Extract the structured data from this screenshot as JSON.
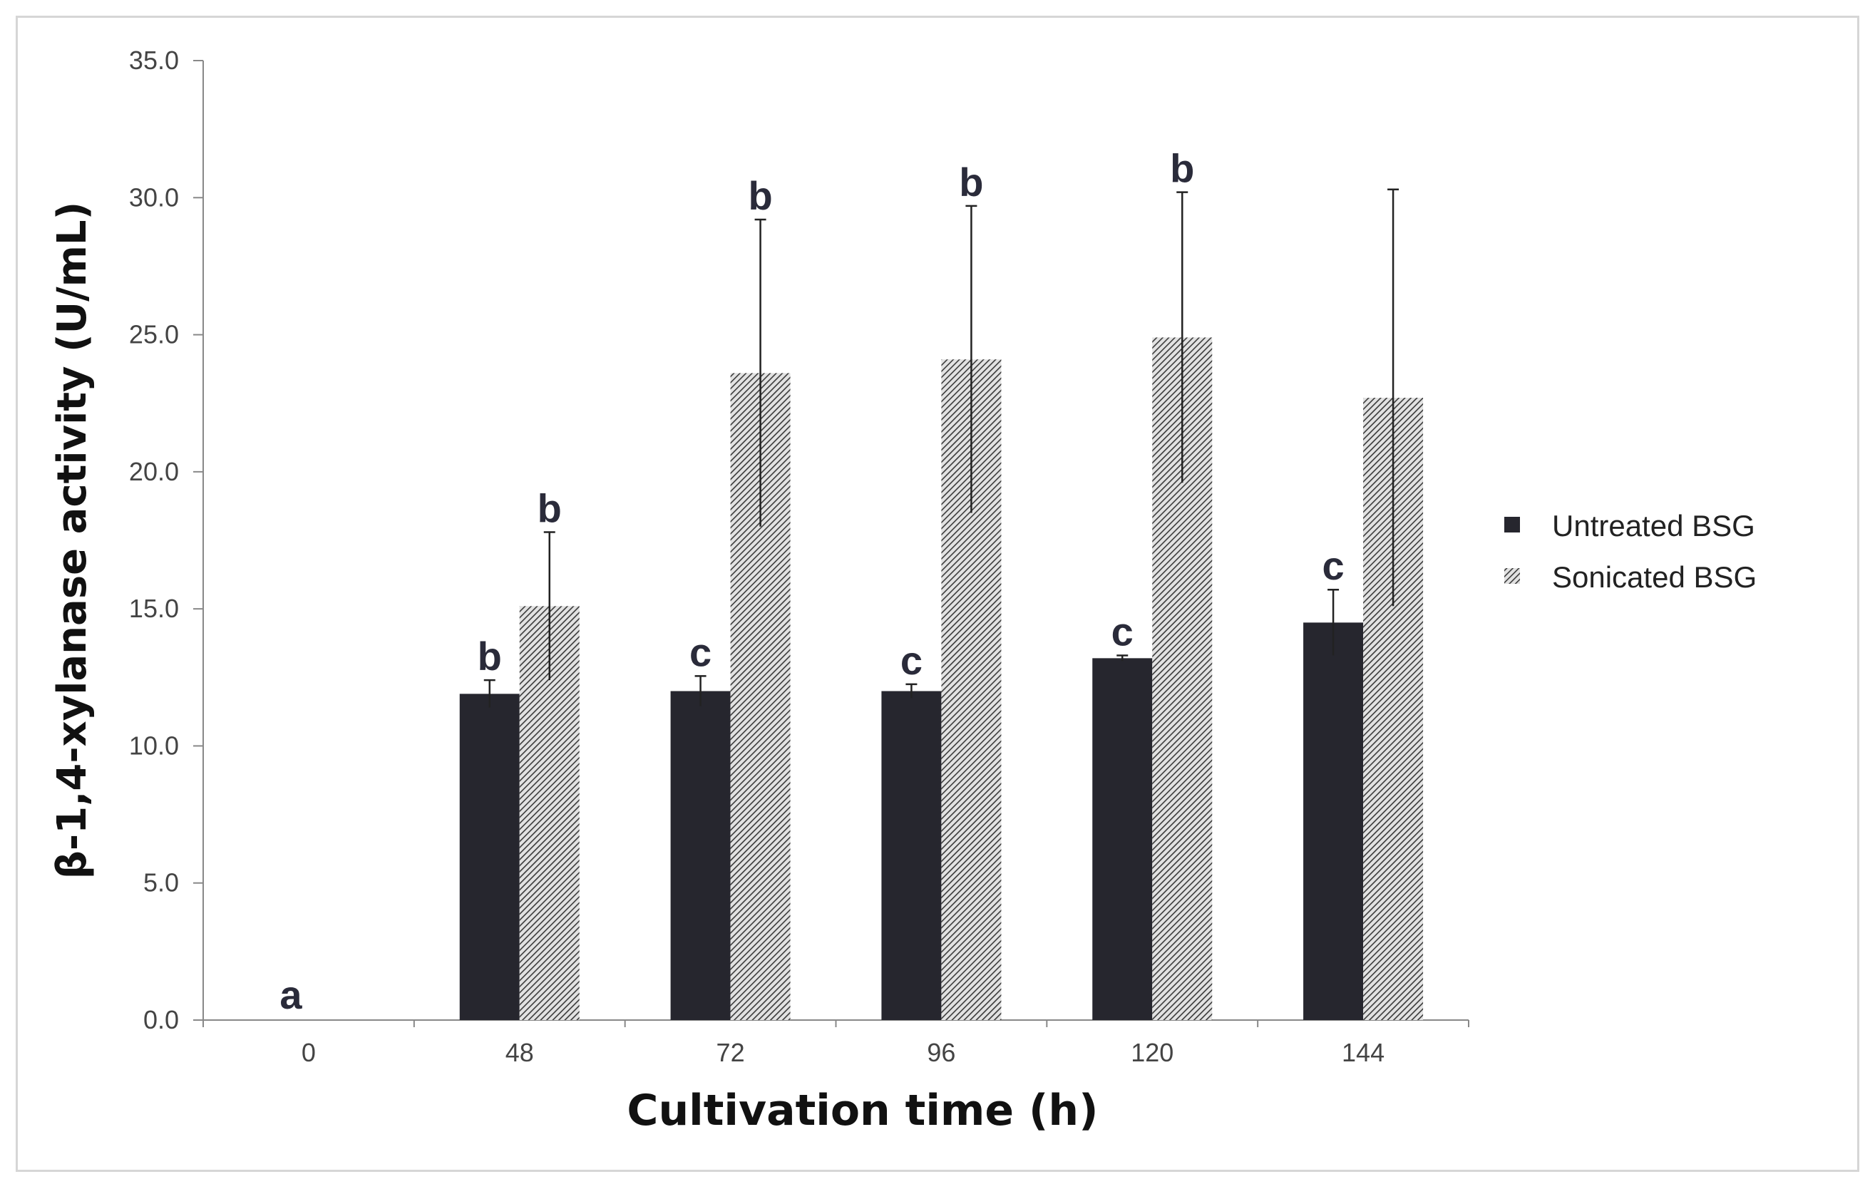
{
  "chart_data": {
    "type": "bar",
    "title": "",
    "xlabel": "Cultivation time (h)",
    "ylabel": "β-1,4-xylanase activity (U/mL)",
    "ylim": [
      0,
      35
    ],
    "y_ticks": [
      "0.0",
      "5.0",
      "10.0",
      "15.0",
      "20.0",
      "25.0",
      "30.0",
      "35.0"
    ],
    "categories": [
      "0",
      "48",
      "72",
      "96",
      "120",
      "144"
    ],
    "series": [
      {
        "name": "Untreated BSG",
        "color": "#26262e",
        "pattern": "solid",
        "values": [
          0,
          11.9,
          12.0,
          12.0,
          13.2,
          14.5
        ],
        "errors": [
          0,
          0.5,
          0.55,
          0.25,
          0.1,
          1.2
        ]
      },
      {
        "name": "Sonicated BSG",
        "color": "#555555",
        "pattern": "hatched",
        "values": [
          0,
          15.1,
          23.6,
          24.1,
          24.9,
          22.7
        ],
        "errors": [
          0,
          2.7,
          5.6,
          5.6,
          5.3,
          7.6
        ]
      }
    ],
    "significance_labels": [
      "a",
      "b",
      "b",
      "c",
      "b",
      "c",
      "b",
      "c",
      "b",
      "c"
    ],
    "legend_position": "right"
  }
}
